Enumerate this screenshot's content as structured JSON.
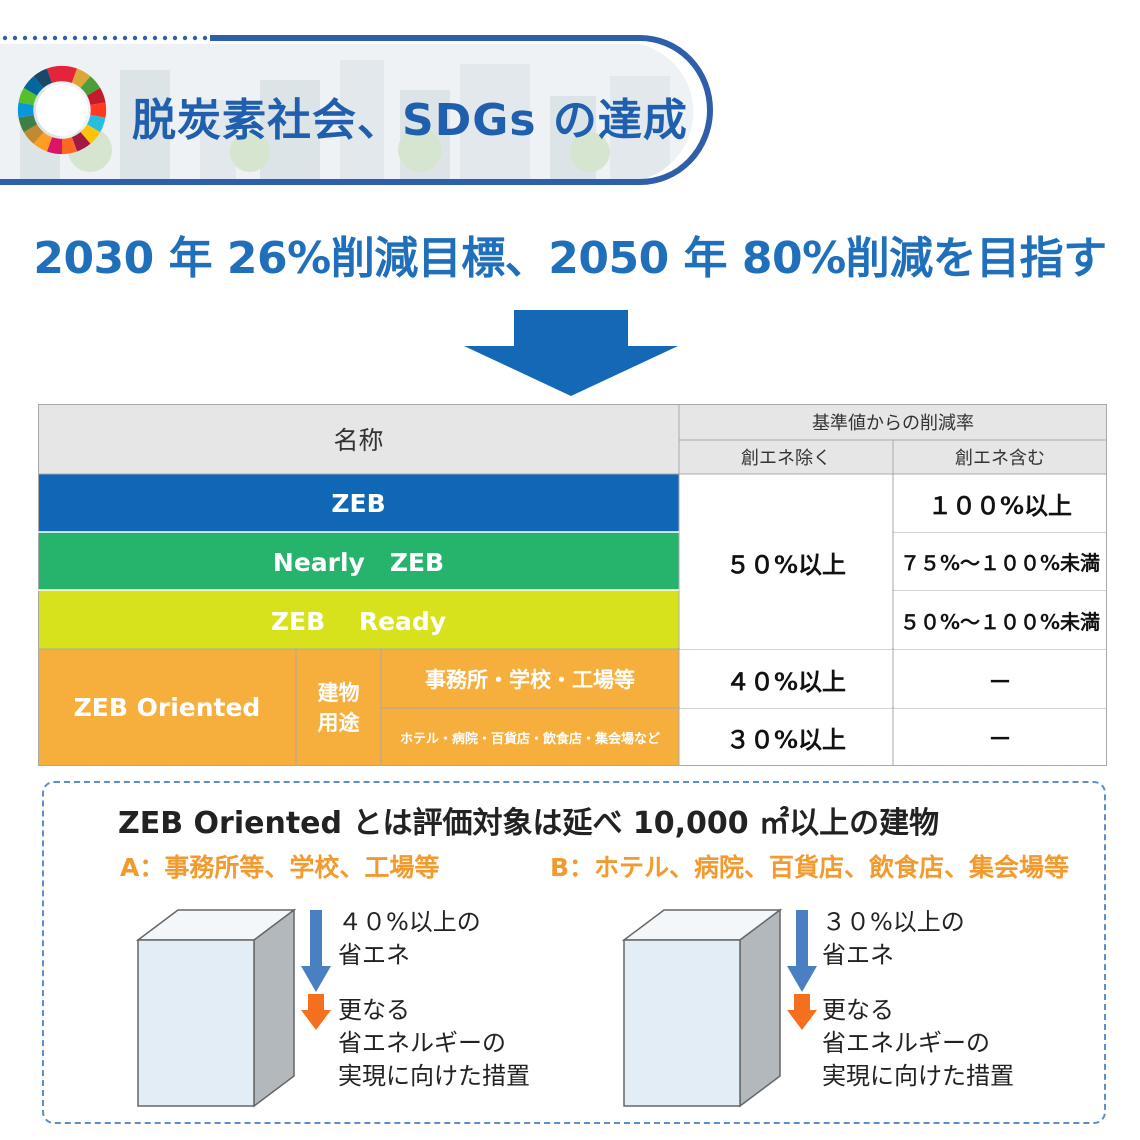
{
  "header": {
    "title": "脱炭素社会、SDGs の達成"
  },
  "goal": {
    "text": "2030 年 26%削減目標、2050 年 80%削減を目指す"
  },
  "table": {
    "header_name": "名称",
    "header_rate": "基準値からの削減率",
    "header_excl": "創エネ除く",
    "header_incl": "創エネ含む",
    "rows": {
      "zeb": "ZEB",
      "nearly": "Nearly　ZEB",
      "ready": "ZEB　 Ready",
      "oriented": "ZEB Oriented"
    },
    "use_label_line1": "建物",
    "use_label_line2": "用途",
    "use_a": "事務所・学校・工場等",
    "use_b": "ホテル・病院・百貨店・飲食店・集会場など",
    "excl_50": "５０%以上",
    "excl_40": "４０%以上",
    "excl_30": "３０%以上",
    "incl_zeb": "１００%以上",
    "incl_nearly": "７５%～１００%未満",
    "incl_ready": "５０%～１００%未満",
    "incl_a": "－",
    "incl_b": "－",
    "colors": {
      "zeb": "#0f67b5",
      "nearly": "#26b46d",
      "ready": "#d8e21c",
      "oriented": "#f6ae3c"
    }
  },
  "oriented": {
    "title": "ZEB Oriented とは評価対象は延べ 10,000 ㎡以上の建物",
    "cat_a": "A：事務所等、学校、工場等",
    "cat_b": "B：ホテル、病院、百貨店、飲食店、集会場等",
    "a_step1_line1": "４０%以上の",
    "a_step1_line2": "省エネ",
    "b_step1_line1": "３０%以上の",
    "b_step1_line2": "省エネ",
    "step2_line1": "更なる",
    "step2_line2": "省エネルギーの",
    "step2_line3": "実現に向けた措置"
  }
}
